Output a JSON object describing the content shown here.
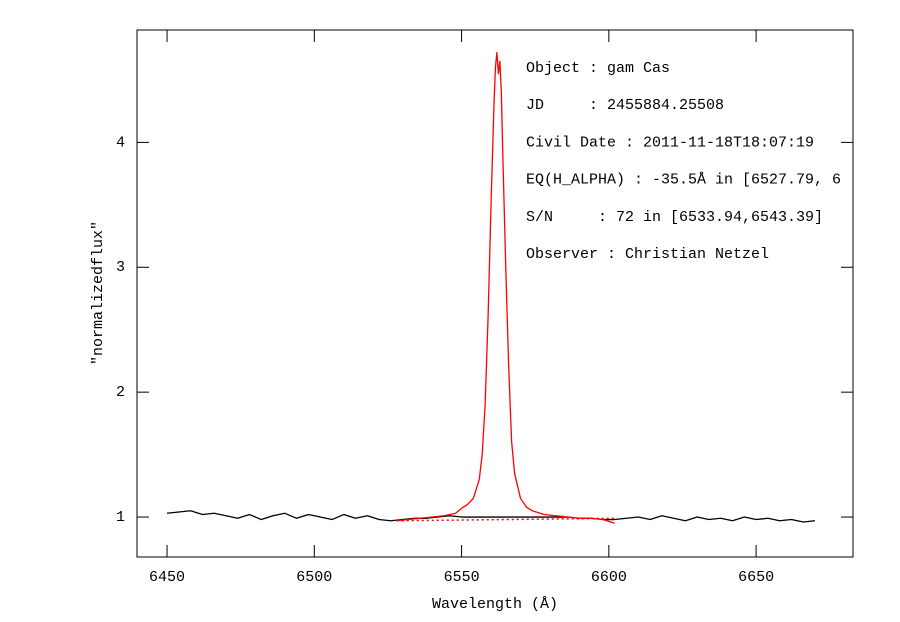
{
  "chart_data": {
    "type": "line",
    "xlabel": "Wavelength (Å)",
    "ylabel": "\"normalizedflux\"",
    "xlim": [
      6439.8,
      6682.9
    ],
    "ylim": [
      0.68,
      4.9
    ],
    "xticks": [
      6450,
      6500,
      6550,
      6600,
      6650
    ],
    "yticks": [
      1,
      2,
      3,
      4
    ],
    "grid": false,
    "annotations": [
      "Object : gam Cas",
      "JD     : 2455884.25508",
      "Civil Date : 2011-11-18T18:07:19",
      "EQ(H_ALPHA) : -35.5Å in [6527.79, 6",
      "S/N     : 72 in [6533.94,6543.39]",
      "Observer : Christian Netzel"
    ],
    "series": [
      {
        "color": "#000000",
        "dash": false,
        "x": [
          6450,
          6454,
          6458,
          6462,
          6466,
          6470,
          6474,
          6478,
          6482,
          6486,
          6490,
          6494,
          6498,
          6502,
          6506,
          6510,
          6514,
          6518,
          6522,
          6526,
          6530,
          6534,
          6538,
          6542,
          6546,
          6550,
          6554,
          6558,
          6562,
          6566,
          6570,
          6574,
          6578,
          6582,
          6586,
          6590,
          6594,
          6598,
          6602,
          6606,
          6610,
          6614,
          6618,
          6622,
          6626,
          6630,
          6634,
          6638,
          6642,
          6646,
          6650,
          6654,
          6658,
          6662,
          6666,
          6670
        ],
        "values": [
          1.03,
          1.04,
          1.05,
          1.02,
          1.03,
          1.01,
          0.99,
          1.02,
          0.98,
          1.01,
          1.03,
          0.99,
          1.02,
          1.0,
          0.98,
          1.02,
          0.99,
          1.01,
          0.98,
          0.97,
          0.98,
          0.99,
          0.99,
          1.0,
          1.01,
          1.0,
          1.0,
          1.0,
          1.0,
          1.0,
          1.0,
          1.0,
          1.0,
          1.0,
          1.0,
          0.99,
          0.99,
          0.98,
          0.98,
          0.99,
          1.0,
          0.98,
          1.01,
          0.99,
          0.97,
          1.0,
          0.98,
          0.99,
          0.97,
          1.0,
          0.98,
          0.99,
          0.97,
          0.98,
          0.96,
          0.97
        ]
      },
      {
        "color": "#ff0000",
        "dash": false,
        "x": [
          6528,
          6532,
          6536,
          6540,
          6544,
          6548,
          6550,
          6552,
          6554,
          6556,
          6557,
          6558,
          6559,
          6560,
          6561,
          6561.5,
          6562,
          6562.5,
          6563,
          6563.5,
          6564,
          6565,
          6566,
          6567,
          6568,
          6570,
          6572,
          6574,
          6578,
          6582,
          6586,
          6590,
          6594,
          6598,
          6602
        ],
        "values": [
          0.97,
          0.98,
          0.99,
          1.0,
          1.01,
          1.03,
          1.07,
          1.1,
          1.15,
          1.3,
          1.5,
          1.9,
          2.6,
          3.5,
          4.3,
          4.6,
          4.72,
          4.55,
          4.65,
          4.4,
          3.9,
          3.0,
          2.2,
          1.6,
          1.35,
          1.15,
          1.08,
          1.05,
          1.02,
          1.01,
          1.0,
          0.99,
          0.99,
          0.98,
          0.95
        ]
      },
      {
        "color": "#ff0000",
        "dash": true,
        "x": [
          6528,
          6602
        ],
        "values": [
          0.97,
          0.99
        ]
      }
    ]
  }
}
